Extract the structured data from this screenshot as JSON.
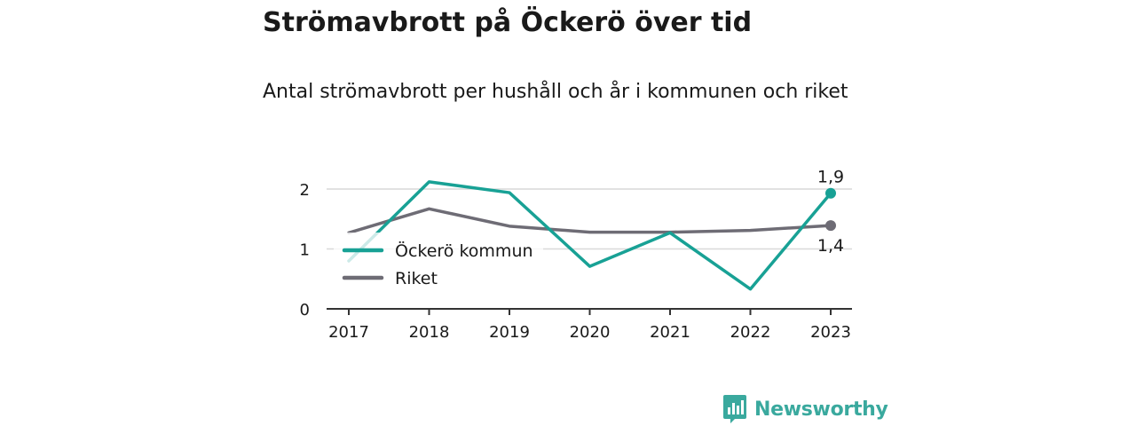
{
  "header": {
    "title": "Strömavbrott på Öckerö över tid",
    "subtitle": "Antal strömavbrott per hushåll och år i kommunen och riket"
  },
  "brand": {
    "name": "Newsworthy",
    "icon": "newsworthy-logo-icon"
  },
  "colors": {
    "ockero": "#18a195",
    "riket": "#6e6c75",
    "grid": "#d9d9d9",
    "axis": "#333333",
    "brand": "#3aa99e"
  },
  "chart_data": {
    "type": "line",
    "x": [
      "2017",
      "2018",
      "2019",
      "2020",
      "2021",
      "2022",
      "2023"
    ],
    "ylim": [
      0,
      2
    ],
    "yticks": [
      "0",
      "1",
      "2"
    ],
    "grid": true,
    "legend": "left-middle",
    "series": [
      {
        "name": "Öckerö kommun",
        "values": [
          0.8,
          2.12,
          1.94,
          0.71,
          1.27,
          0.33,
          1.93
        ],
        "end_label": "1,9"
      },
      {
        "name": "Riket",
        "values": [
          1.27,
          1.67,
          1.38,
          1.28,
          1.28,
          1.31,
          1.39
        ],
        "end_label": "1,4"
      }
    ]
  }
}
